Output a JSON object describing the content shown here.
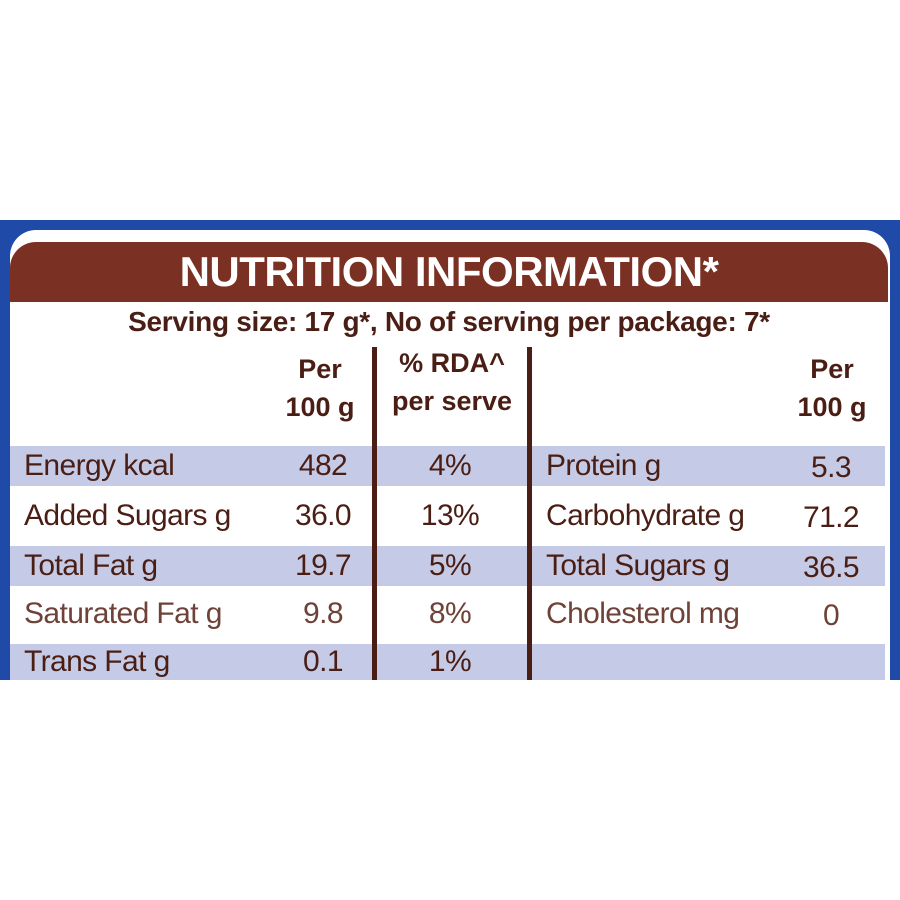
{
  "title": "NUTRITION INFORMATION*",
  "serving_line": "Serving size: 17 g*, No of serving per package: 7*",
  "headers": {
    "left_per": [
      "Per",
      "100 g"
    ],
    "left_rda": [
      "% RDA^",
      "per serve"
    ],
    "right_per": [
      "Per",
      "100 g"
    ]
  },
  "left_rows": [
    {
      "name": "Energy kcal",
      "per100": "482",
      "rda": "4%"
    },
    {
      "name": "Added Sugars g",
      "per100": "36.0",
      "rda": "13%"
    },
    {
      "name": "Total Fat g",
      "per100": "19.7",
      "rda": "5%"
    },
    {
      "name": "Saturated Fat g",
      "per100": "9.8",
      "rda": "8%"
    },
    {
      "name": "Trans Fat g",
      "per100": "0.1",
      "rda": "1%"
    }
  ],
  "right_rows": [
    {
      "name": "Protein g",
      "per100": "5.3"
    },
    {
      "name": "Carbohydrate g",
      "per100": "71.2"
    },
    {
      "name": "Total Sugars g",
      "per100": "36.5"
    },
    {
      "name": "Cholesterol mg",
      "per100": "0"
    }
  ],
  "colors": {
    "frame": "#1f4aa8",
    "title_bar": "#7a3022",
    "text": "#4a1e14",
    "row_band": "#c5cbe6"
  }
}
